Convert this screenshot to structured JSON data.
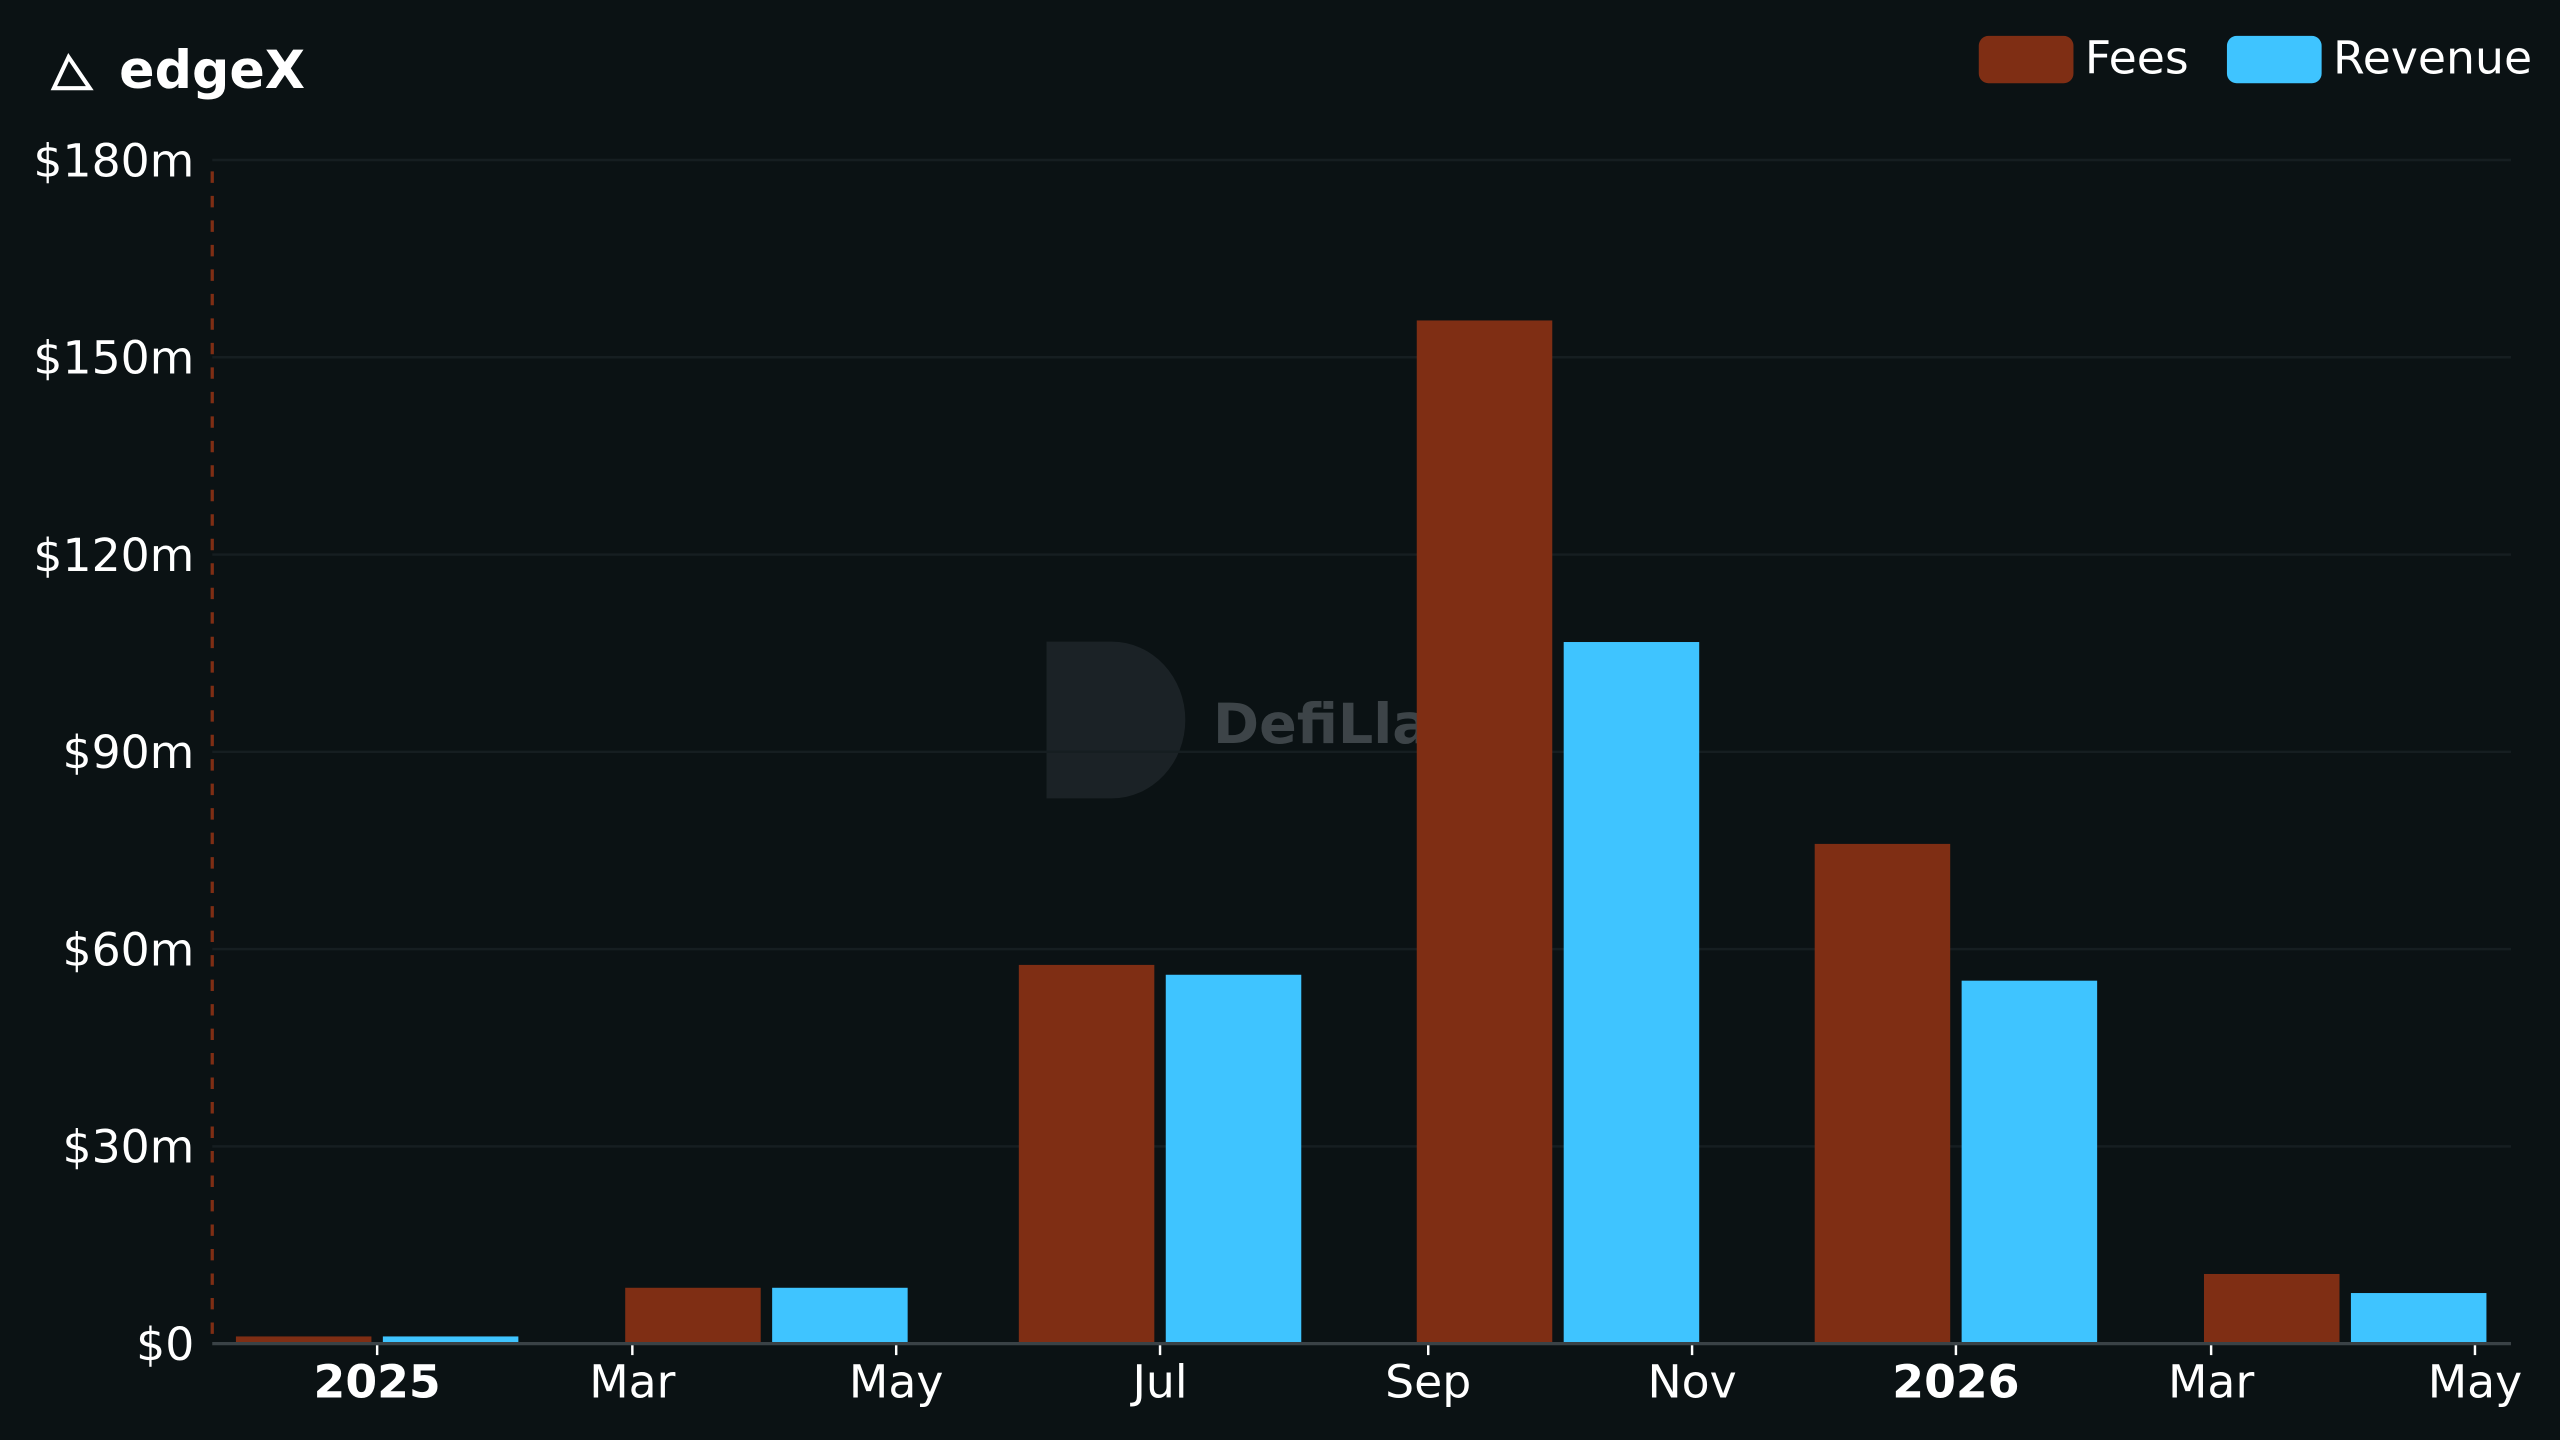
{
  "header": {
    "title": "edgeX",
    "logo_icon": "edgex-triangle-icon"
  },
  "watermark": "DefiLlama",
  "colors": {
    "background": "#0b1214",
    "fees": "#7f2e14",
    "revenue": "#3fc4ff",
    "text": "#ffffff",
    "grid": "#1a2124",
    "axis": "#3a4246"
  },
  "chart_data": {
    "type": "bar",
    "title": "edgeX",
    "x": [
      "2025-01-01",
      "2025-04-01",
      "2025-07-01",
      "2025-10-01",
      "2026-01-01",
      "2026-04-01"
    ],
    "series": [
      {
        "name": "Fees",
        "color": "#7f2e14",
        "values": [
          1.1,
          8.5,
          57.6,
          155.6,
          76.0,
          10.6
        ]
      },
      {
        "name": "Revenue",
        "color": "#3fc4ff",
        "values": [
          1.1,
          8.5,
          56.1,
          106.7,
          55.2,
          7.7
        ]
      }
    ],
    "value_unit": "millions USD",
    "ylim": [
      0,
      180
    ],
    "yticks": [
      0,
      30,
      60,
      90,
      120,
      150,
      180
    ],
    "ytick_labels": [
      "$0",
      "$30m",
      "$60m",
      "$90m",
      "$120m",
      "$150m",
      "$180m"
    ],
    "xticks": [
      {
        "date": "2025-01-01",
        "label": "2025",
        "bold": true
      },
      {
        "date": "2025-03-01",
        "label": "Mar",
        "bold": false
      },
      {
        "date": "2025-05-01",
        "label": "May",
        "bold": false
      },
      {
        "date": "2025-07-01",
        "label": "Jul",
        "bold": false
      },
      {
        "date": "2025-09-01",
        "label": "Sep",
        "bold": false
      },
      {
        "date": "2025-11-01",
        "label": "Nov",
        "bold": false
      },
      {
        "date": "2026-01-01",
        "label": "2026",
        "bold": true
      },
      {
        "date": "2026-03-01",
        "label": "Mar",
        "bold": false
      },
      {
        "date": "2026-05-01",
        "label": "May",
        "bold": false
      }
    ],
    "grid": true,
    "legend": "top-right"
  }
}
